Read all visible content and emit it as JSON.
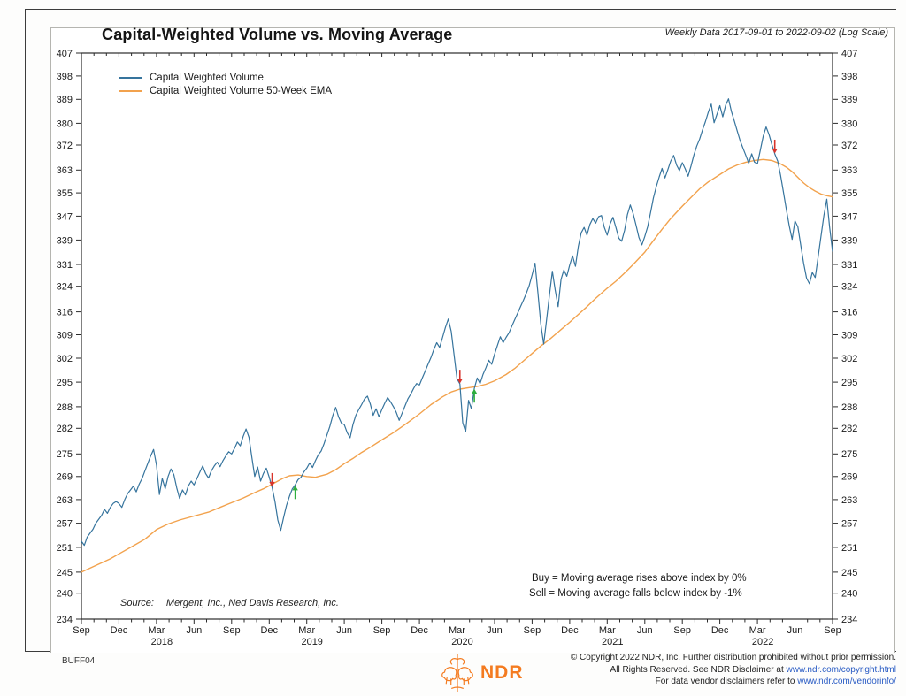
{
  "header": {
    "title": "Capital-Weighted Volume vs. Moving Average",
    "subtitle": "Weekly Data 2017-09-01 to 2022-09-02 (Log Scale)"
  },
  "legend": [
    {
      "label": "Capital Weighted Volume",
      "color": "#36749d"
    },
    {
      "label": "Capital Weighted Volume 50-Week EMA",
      "color": "#f2a24d"
    }
  ],
  "annotations": {
    "buy_rule": "Buy = Moving average rises above index by 0%",
    "sell_rule": "Sell = Moving average falls below index by -1%",
    "source_label": "Source:",
    "source_text": "Mergent, Inc., Ned Davis Research, Inc."
  },
  "footer": {
    "chart_id": "BUFF04",
    "logo_text": "NDR",
    "logo_color": "#f47b20",
    "copyright_line1": "© Copyright 2022 NDR, Inc. Further distribution prohibited without prior permission.",
    "copyright_line2_prefix": "All Rights Reserved. See NDR Disclaimer at ",
    "copyright_line2_link": "www.ndr.com/copyright.html",
    "copyright_line3_prefix": "For data vendor disclaimers refer to ",
    "copyright_line3_link": "www.ndr.com/vendorinfo/"
  },
  "chart_data": {
    "type": "line",
    "title": "Capital-Weighted Volume vs. Moving Average",
    "subtitle": "Weekly Data 2017-09-01 to 2022-09-02 (Log Scale)",
    "log_scale": true,
    "ylim": [
      234,
      407
    ],
    "x_unit": "weeks since 2017-09-01 (week 260 = 2022-09-02)",
    "x_range": [
      0,
      260
    ],
    "y_ticks": [
      407,
      398,
      389,
      380,
      372,
      363,
      355,
      347,
      339,
      331,
      324,
      316,
      309,
      302,
      295,
      288,
      282,
      275,
      269,
      263,
      257,
      251,
      245,
      240,
      234
    ],
    "x_ticks": [
      {
        "week": 0,
        "label": "Sep"
      },
      {
        "week": 13,
        "label": "Dec"
      },
      {
        "week": 26,
        "label": "Mar"
      },
      {
        "week": 39,
        "label": "Jun"
      },
      {
        "week": 52,
        "label": "Sep"
      },
      {
        "week": 65,
        "label": "Dec"
      },
      {
        "week": 78,
        "label": "Mar"
      },
      {
        "week": 91,
        "label": "Jun"
      },
      {
        "week": 104,
        "label": "Sep"
      },
      {
        "week": 117,
        "label": "Dec"
      },
      {
        "week": 130,
        "label": "Mar"
      },
      {
        "week": 143,
        "label": "Jun"
      },
      {
        "week": 156,
        "label": "Sep"
      },
      {
        "week": 169,
        "label": "Dec"
      },
      {
        "week": 182,
        "label": "Mar"
      },
      {
        "week": 195,
        "label": "Jun"
      },
      {
        "week": 208,
        "label": "Sep"
      },
      {
        "week": 221,
        "label": "Dec"
      },
      {
        "week": 234,
        "label": "Mar"
      },
      {
        "week": 247,
        "label": "Jun"
      },
      {
        "week": 260,
        "label": "Sep"
      }
    ],
    "year_labels": [
      {
        "week": 26,
        "label": "2018"
      },
      {
        "week": 78,
        "label": "2019"
      },
      {
        "week": 130,
        "label": "2020"
      },
      {
        "week": 182,
        "label": "2021"
      },
      {
        "week": 234,
        "label": "2022"
      }
    ],
    "series": [
      {
        "name": "Capital Weighted Volume",
        "color": "#36749d",
        "x_start": 0,
        "x_step": 1,
        "y": [
          252.5,
          251.5,
          253.5,
          254.5,
          255.5,
          257,
          258,
          259,
          260.5,
          259.5,
          261,
          262,
          262.5,
          262,
          261,
          263,
          264.5,
          265.5,
          266.5,
          265,
          267,
          268.5,
          270.5,
          272.5,
          274.5,
          276.2,
          272,
          264.3,
          268.5,
          265.8,
          269,
          271,
          269.5,
          266,
          263.3,
          265.5,
          264.2,
          266.5,
          267.8,
          266.8,
          268.5,
          270.2,
          271.8,
          269.8,
          268.6,
          270.5,
          271.8,
          272.8,
          271.6,
          273.2,
          274.5,
          275.6,
          275,
          276.5,
          278.2,
          277.2,
          279.8,
          281.8,
          279.5,
          274,
          269,
          271.5,
          267.8,
          269.8,
          271.2,
          268.8,
          266.2,
          262.5,
          257.8,
          255.2,
          258.5,
          261.5,
          263.8,
          265.8,
          266.8,
          268.2,
          268.8,
          270.2,
          271.2,
          272.6,
          271.4,
          273.2,
          274.8,
          275.8,
          277.8,
          280.2,
          282.5,
          285.5,
          287.8,
          285.2,
          283.4,
          283,
          280.8,
          279.4,
          283,
          285.6,
          287.2,
          288.6,
          290.2,
          291,
          288.8,
          285.6,
          287.4,
          285.2,
          287.2,
          289,
          290.6,
          289.4,
          288,
          286.4,
          284.2,
          286.2,
          288.2,
          290.2,
          291.6,
          293.2,
          294.6,
          294.2,
          296.2,
          298.2,
          300.2,
          302.2,
          304.6,
          306.6,
          305.2,
          308.2,
          311.2,
          313.8,
          310,
          303,
          296,
          294.5,
          283.5,
          281,
          289.8,
          287.4,
          293.2,
          296.2,
          294.6,
          297.2,
          299.2,
          301.4,
          300.2,
          303.2,
          305.8,
          308.4,
          306.6,
          308.2,
          309.6,
          311.6,
          313.6,
          315.6,
          317.6,
          319.6,
          321.8,
          324.2,
          327.6,
          331.4,
          322.2,
          312.4,
          306.2,
          313.4,
          321.2,
          328.8,
          322.8,
          317.6,
          326.2,
          329.2,
          327.2,
          330.8,
          333.8,
          330.4,
          336.8,
          341.4,
          343.2,
          340.6,
          344.2,
          346.2,
          344.6,
          346.8,
          347.2,
          343.2,
          340.6,
          344.4,
          346.6,
          343.2,
          339.6,
          338.6,
          342.2,
          347.6,
          350.8,
          347.8,
          343.8,
          339.8,
          337.4,
          340.2,
          343.4,
          348.2,
          353.2,
          357.2,
          360.6,
          363.6,
          360.2,
          363.2,
          366.2,
          368.2,
          364.8,
          362.8,
          365.6,
          363.4,
          360.8,
          364.4,
          368.4,
          371.6,
          374.2,
          377.6,
          380.6,
          384.2,
          387.2,
          380.2,
          383.4,
          386.6,
          382.4,
          386.8,
          389.2,
          384.4,
          380.8,
          377.2,
          373.6,
          370.8,
          368.2,
          365.4,
          368.8,
          365.8,
          365.2,
          370.2,
          375.2,
          378.6,
          375.8,
          372.2,
          368.8,
          366.2,
          361.2,
          355.2,
          349.2,
          343.8,
          339.2,
          345.4,
          343.4,
          337.2,
          331.4,
          326.6,
          324.8,
          328.4,
          326.8,
          333.4,
          340.2,
          347.2,
          352.8,
          343.2,
          335.2
        ]
      },
      {
        "name": "Capital Weighted Volume 50-Week EMA",
        "color": "#f2a24d",
        "x": [
          0,
          5,
          10,
          13,
          18,
          22,
          26,
          30,
          34,
          39,
          44,
          48,
          52,
          56,
          60,
          63,
          65,
          68,
          70,
          72,
          75,
          78,
          81,
          85,
          88,
          91,
          94,
          97,
          100,
          104,
          108,
          112,
          117,
          121,
          125,
          128,
          131,
          134,
          137,
          140,
          143,
          147,
          150,
          153,
          156,
          159,
          162,
          165,
          169,
          172,
          175,
          178,
          182,
          185,
          188,
          191,
          195,
          198,
          201,
          204,
          208,
          211,
          214,
          217,
          221,
          224,
          227,
          230,
          233,
          236,
          239,
          242,
          244,
          246,
          248,
          250,
          252,
          254,
          256,
          258,
          260
        ],
        "y": [
          245,
          246.6,
          248.2,
          249.4,
          251.4,
          253,
          255.4,
          256.8,
          257.8,
          258.8,
          259.8,
          261,
          262.2,
          263.4,
          264.8,
          265.8,
          266.6,
          267.8,
          268.6,
          269.2,
          269.4,
          269,
          268.8,
          269.6,
          270.8,
          272.4,
          273.8,
          275.4,
          276.8,
          278.8,
          280.8,
          283,
          286,
          288.6,
          290.8,
          292.2,
          293,
          293.4,
          293.8,
          294.4,
          295.4,
          297.2,
          299,
          301.2,
          303.4,
          305.6,
          307.6,
          309.8,
          312.8,
          315.2,
          317.6,
          320.2,
          323.4,
          325.6,
          328.2,
          331,
          335,
          338.8,
          342.6,
          346.2,
          350.4,
          353.4,
          356.4,
          358.8,
          361.4,
          363.4,
          364.8,
          365.8,
          366.4,
          366.8,
          366.4,
          365.2,
          364,
          362.4,
          360.4,
          358.4,
          356.8,
          355.6,
          354.6,
          354,
          353.6
        ]
      }
    ],
    "signals": [
      {
        "type": "sell",
        "week": 66,
        "value": 266.2,
        "color": "#d8342c"
      },
      {
        "type": "buy",
        "week": 74,
        "value": 266.8,
        "color": "#2eae3e"
      },
      {
        "type": "sell",
        "week": 131,
        "value": 294.5,
        "color": "#d8342c"
      },
      {
        "type": "buy",
        "week": 136,
        "value": 293.2,
        "color": "#2eae3e"
      },
      {
        "type": "sell",
        "week": 240,
        "value": 368.8,
        "color": "#d8342c"
      }
    ]
  }
}
